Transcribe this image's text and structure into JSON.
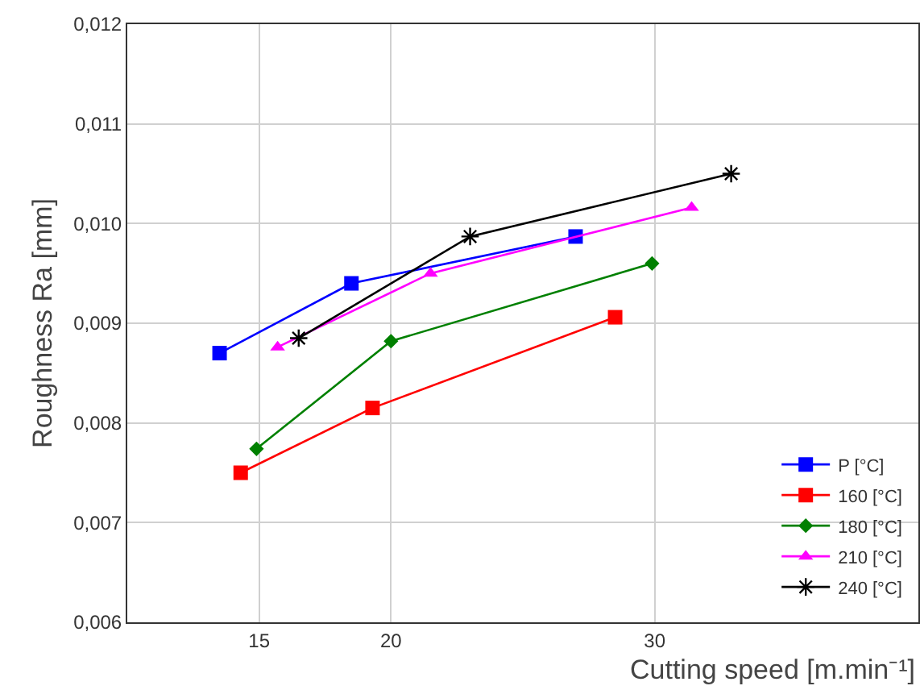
{
  "chart_data": {
    "type": "line",
    "xlabel": "Cutting speed [m.min⁻¹]",
    "ylabel": "Roughness Ra [mm]",
    "xlim": [
      10,
      40
    ],
    "xticks": [
      15,
      20,
      30
    ],
    "ylim": [
      0.006,
      0.012
    ],
    "yticks": [
      {
        "value": 0.006,
        "label": "0,006"
      },
      {
        "value": 0.007,
        "label": "0,007"
      },
      {
        "value": 0.008,
        "label": "0,008"
      },
      {
        "value": 0.009,
        "label": "0,009"
      },
      {
        "value": 0.01,
        "label": "0,010"
      },
      {
        "value": 0.011,
        "label": "0,011"
      },
      {
        "value": 0.012,
        "label": "0,012"
      }
    ],
    "grid": true,
    "legend": "bottom right",
    "line_style": "solid",
    "series": [
      {
        "name": "P [°C]",
        "color": "#0000ff",
        "marker": "square",
        "x": [
          13.5,
          18.5,
          27.0
        ],
        "values": [
          0.0087,
          0.0094,
          0.00987
        ]
      },
      {
        "name": "160 [°C]",
        "color": "#ff0000",
        "marker": "square",
        "x": [
          14.3,
          19.3,
          28.5
        ],
        "values": [
          0.0075,
          0.00815,
          0.00906
        ]
      },
      {
        "name": "180 [°C]",
        "color": "#008000",
        "marker": "diamond",
        "x": [
          14.9,
          20.0,
          29.9
        ],
        "values": [
          0.00774,
          0.00882,
          0.0096
        ]
      },
      {
        "name": "210 [°C]",
        "color": "#ff00ff",
        "marker": "triangle",
        "x": [
          15.7,
          21.5,
          31.4
        ],
        "values": [
          0.00876,
          0.0095,
          0.01016
        ]
      },
      {
        "name": "240 [°C]",
        "color": "#000000",
        "marker": "cross",
        "x": [
          16.5,
          23.0,
          32.9
        ],
        "values": [
          0.00885,
          0.00987,
          0.0105
        ]
      }
    ]
  }
}
